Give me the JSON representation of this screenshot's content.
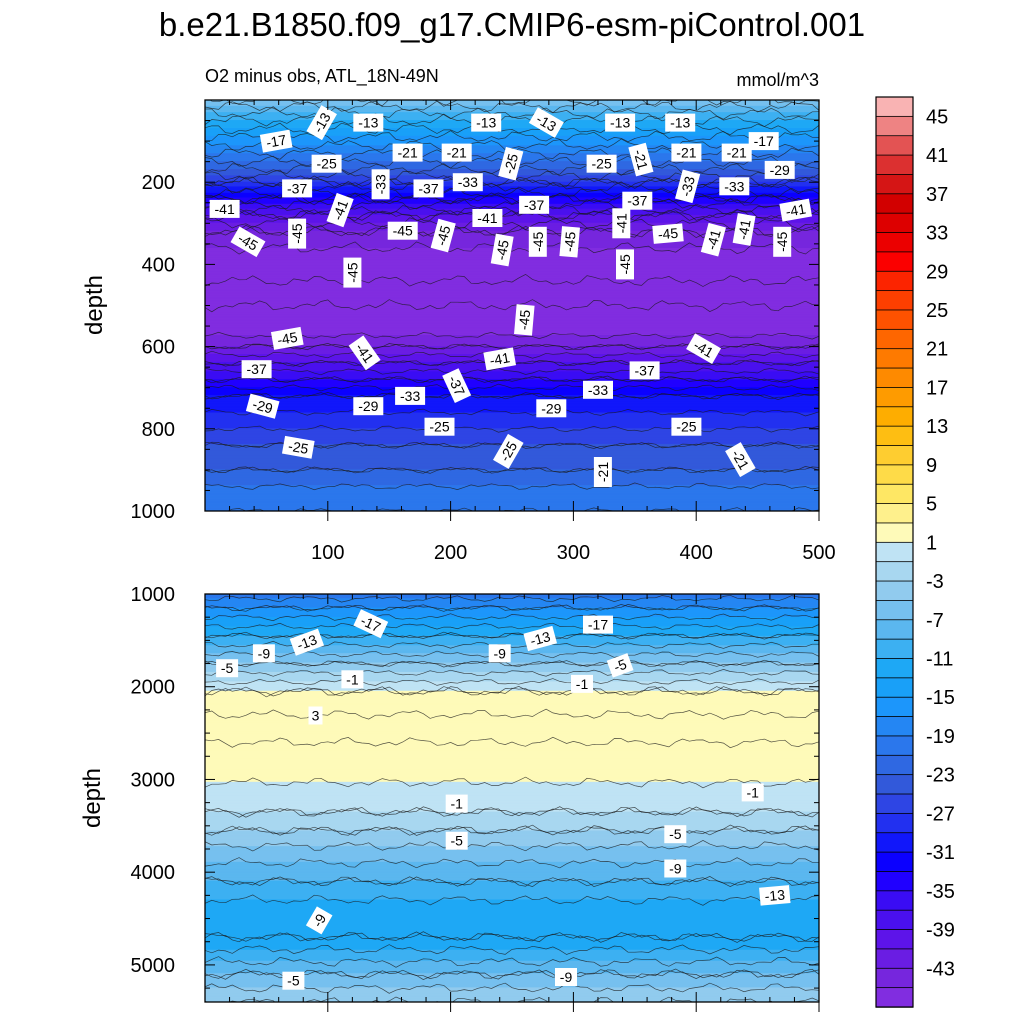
{
  "page": {
    "title": "b.e21.B1850.f09_g17.CMIP6-esm-piControl.001",
    "subtitle_left": "O2 minus obs, ATL_18N-49N",
    "subtitle_right": "mmol/m^3"
  },
  "chart_data": [
    {
      "type": "contour",
      "panel": "upper",
      "variable": "O2 minus obs",
      "region": "ATL_18N-49N",
      "units": "mmol/m^3",
      "xlabel": "",
      "ylabel": "depth",
      "xlim": [
        0,
        500
      ],
      "ylim": [
        1000,
        0
      ],
      "xticks": [
        100,
        200,
        300,
        400,
        500
      ],
      "yticks": [
        200,
        400,
        600,
        800,
        1000
      ],
      "profile": {
        "depth": [
          0,
          40,
          80,
          120,
          160,
          200,
          240,
          280,
          320,
          380,
          440,
          500,
          560,
          600,
          640,
          680,
          720,
          780,
          840,
          900,
          960,
          1000
        ],
        "value": [
          -5,
          -10,
          -14,
          -18,
          -22,
          -27,
          -33,
          -39,
          -43,
          -46,
          -47,
          -47,
          -46,
          -43,
          -39,
          -35,
          -31,
          -28,
          -25,
          -23,
          -20,
          -19
        ]
      },
      "contour_labels": [
        {
          "text": "-13",
          "x": 95,
          "y": 55,
          "rot": -60
        },
        {
          "text": "-13",
          "x": 133,
          "y": 55,
          "rot": 0
        },
        {
          "text": "-13",
          "x": 229,
          "y": 55,
          "rot": 0
        },
        {
          "text": "-13",
          "x": 278,
          "y": 55,
          "rot": 30
        },
        {
          "text": "-13",
          "x": 338,
          "y": 55,
          "rot": 0
        },
        {
          "text": "-13",
          "x": 387,
          "y": 55,
          "rot": 0
        },
        {
          "text": "-17",
          "x": 58,
          "y": 100,
          "rot": -10
        },
        {
          "text": "-17",
          "x": 455,
          "y": 100,
          "rot": 0
        },
        {
          "text": "-21",
          "x": 165,
          "y": 128,
          "rot": 0
        },
        {
          "text": "-21",
          "x": 205,
          "y": 128,
          "rot": 0
        },
        {
          "text": "-21",
          "x": 355,
          "y": 145,
          "rot": 75
        },
        {
          "text": "-21",
          "x": 392,
          "y": 128,
          "rot": 0
        },
        {
          "text": "-21",
          "x": 433,
          "y": 128,
          "rot": 0
        },
        {
          "text": "-25",
          "x": 99,
          "y": 155,
          "rot": 0
        },
        {
          "text": "-25",
          "x": 249,
          "y": 155,
          "rot": -75
        },
        {
          "text": "-25",
          "x": 323,
          "y": 155,
          "rot": 0
        },
        {
          "text": "-29",
          "x": 468,
          "y": 170,
          "rot": 0
        },
        {
          "text": "-33",
          "x": 143,
          "y": 205,
          "rot": -90
        },
        {
          "text": "-33",
          "x": 214,
          "y": 200,
          "rot": 0
        },
        {
          "text": "-33",
          "x": 393,
          "y": 210,
          "rot": -75
        },
        {
          "text": "-33",
          "x": 431,
          "y": 210,
          "rot": 0
        },
        {
          "text": "-37",
          "x": 75,
          "y": 215,
          "rot": 0
        },
        {
          "text": "-37",
          "x": 182,
          "y": 215,
          "rot": 0
        },
        {
          "text": "-37",
          "x": 268,
          "y": 255,
          "rot": 0
        },
        {
          "text": "-37",
          "x": 352,
          "y": 245,
          "rot": 0
        },
        {
          "text": "-41",
          "x": 16,
          "y": 265,
          "rot": 0
        },
        {
          "text": "-41",
          "x": 110,
          "y": 268,
          "rot": -70
        },
        {
          "text": "-41",
          "x": 230,
          "y": 287,
          "rot": 0
        },
        {
          "text": "-41",
          "x": 339,
          "y": 300,
          "rot": -90
        },
        {
          "text": "-41",
          "x": 414,
          "y": 340,
          "rot": -75
        },
        {
          "text": "-41",
          "x": 439,
          "y": 315,
          "rot": -80
        },
        {
          "text": "-41",
          "x": 481,
          "y": 268,
          "rot": -10
        },
        {
          "text": "-45",
          "x": 35,
          "y": 345,
          "rot": 30
        },
        {
          "text": "-45",
          "x": 75,
          "y": 325,
          "rot": -90
        },
        {
          "text": "-45",
          "x": 161,
          "y": 318,
          "rot": 0
        },
        {
          "text": "-45",
          "x": 194,
          "y": 330,
          "rot": -75
        },
        {
          "text": "-45",
          "x": 120,
          "y": 420,
          "rot": -90
        },
        {
          "text": "-45",
          "x": 242,
          "y": 365,
          "rot": -80
        },
        {
          "text": "-45",
          "x": 271,
          "y": 345,
          "rot": -90
        },
        {
          "text": "-45",
          "x": 297,
          "y": 345,
          "rot": -85
        },
        {
          "text": "-45",
          "x": 342,
          "y": 400,
          "rot": -90
        },
        {
          "text": "-45",
          "x": 377,
          "y": 325,
          "rot": -5
        },
        {
          "text": "-45",
          "x": 470,
          "y": 345,
          "rot": -90
        },
        {
          "text": "-45",
          "x": 67,
          "y": 580,
          "rot": -10
        },
        {
          "text": "-45",
          "x": 260,
          "y": 535,
          "rot": -85
        },
        {
          "text": "-41",
          "x": 130,
          "y": 615,
          "rot": 55
        },
        {
          "text": "-41",
          "x": 240,
          "y": 630,
          "rot": -10
        },
        {
          "text": "-41",
          "x": 406,
          "y": 605,
          "rot": 30
        },
        {
          "text": "-37",
          "x": 42,
          "y": 655,
          "rot": 0
        },
        {
          "text": "-37",
          "x": 205,
          "y": 695,
          "rot": 65
        },
        {
          "text": "-37",
          "x": 358,
          "y": 658,
          "rot": 0
        },
        {
          "text": "-33",
          "x": 167,
          "y": 720,
          "rot": 0
        },
        {
          "text": "-33",
          "x": 320,
          "y": 705,
          "rot": 0
        },
        {
          "text": "-29",
          "x": 47,
          "y": 745,
          "rot": 15
        },
        {
          "text": "-29",
          "x": 133,
          "y": 745,
          "rot": 0
        },
        {
          "text": "-29",
          "x": 282,
          "y": 750,
          "rot": 0
        },
        {
          "text": "-25",
          "x": 76,
          "y": 845,
          "rot": 10
        },
        {
          "text": "-25",
          "x": 191,
          "y": 795,
          "rot": 0
        },
        {
          "text": "-25",
          "x": 247,
          "y": 855,
          "rot": -60
        },
        {
          "text": "-25",
          "x": 392,
          "y": 795,
          "rot": 0
        },
        {
          "text": "-21",
          "x": 324,
          "y": 905,
          "rot": -90
        },
        {
          "text": "-21",
          "x": 436,
          "y": 875,
          "rot": 60
        }
      ]
    },
    {
      "type": "contour",
      "panel": "lower",
      "variable": "O2 minus obs",
      "region": "ATL_18N-49N",
      "units": "mmol/m^3",
      "xlabel": "",
      "ylabel": "depth",
      "xlim": [
        0,
        500
      ],
      "ylim": [
        5400,
        1000
      ],
      "yticks": [
        1000,
        2000,
        3000,
        4000,
        5000
      ],
      "profile": {
        "depth": [
          1000,
          1150,
          1300,
          1450,
          1600,
          1750,
          1900,
          2050,
          2300,
          2600,
          2900,
          3100,
          3350,
          3550,
          3800,
          4100,
          4400,
          4700,
          4900,
          5100,
          5400
        ],
        "value": [
          -20,
          -17,
          -14,
          -11,
          -8,
          -5,
          -2,
          1,
          3,
          3,
          2,
          0.5,
          -1,
          -3,
          -6,
          -9,
          -12,
          -13,
          -10,
          -7,
          -3
        ]
      },
      "contour_labels": [
        {
          "text": "-17",
          "x": 135,
          "y": 1320,
          "rot": 25
        },
        {
          "text": "-17",
          "x": 320,
          "y": 1330,
          "rot": 0
        },
        {
          "text": "-13",
          "x": 83,
          "y": 1520,
          "rot": -20
        },
        {
          "text": "-13",
          "x": 273,
          "y": 1480,
          "rot": -15
        },
        {
          "text": "-9",
          "x": 48,
          "y": 1640,
          "rot": 0
        },
        {
          "text": "-9",
          "x": 240,
          "y": 1640,
          "rot": 0
        },
        {
          "text": "-5",
          "x": 18,
          "y": 1800,
          "rot": 0
        },
        {
          "text": "-5",
          "x": 338,
          "y": 1770,
          "rot": -20
        },
        {
          "text": "-1",
          "x": 120,
          "y": 1920,
          "rot": 0
        },
        {
          "text": "-1",
          "x": 307,
          "y": 1970,
          "rot": 0
        },
        {
          "text": "3",
          "x": 90,
          "y": 2310,
          "rot": 0
        },
        {
          "text": "-1",
          "x": 205,
          "y": 3260,
          "rot": 0
        },
        {
          "text": "-1",
          "x": 446,
          "y": 3140,
          "rot": 0
        },
        {
          "text": "-5",
          "x": 205,
          "y": 3660,
          "rot": 0
        },
        {
          "text": "-5",
          "x": 383,
          "y": 3590,
          "rot": 0
        },
        {
          "text": "-9",
          "x": 383,
          "y": 3960,
          "rot": 0
        },
        {
          "text": "-9",
          "x": 93,
          "y": 4520,
          "rot": -60
        },
        {
          "text": "-13",
          "x": 464,
          "y": 4250,
          "rot": -5
        },
        {
          "text": "-9",
          "x": 294,
          "y": 5130,
          "rot": 0
        },
        {
          "text": "-5",
          "x": 72,
          "y": 5170,
          "rot": 0
        }
      ]
    }
  ],
  "colorbar": {
    "labels": [
      "45",
      "41",
      "37",
      "33",
      "29",
      "25",
      "21",
      "17",
      "13",
      "9",
      "5",
      "1",
      "-3",
      "-7",
      "-11",
      "-15",
      "-19",
      "-23",
      "-27",
      "-31",
      "-35",
      "-39",
      "-43"
    ],
    "levels": [
      47,
      45,
      43,
      41,
      39,
      37,
      35,
      33,
      31,
      29,
      27,
      25,
      23,
      21,
      19,
      17,
      15,
      13,
      11,
      9,
      7,
      5,
      3,
      1,
      -1,
      -3,
      -5,
      -7,
      -9,
      -11,
      -13,
      -15,
      -17,
      -19,
      -21,
      -23,
      -25,
      -27,
      -29,
      -31,
      -33,
      -35,
      -37,
      -39,
      -41,
      -43,
      -45,
      -47
    ],
    "colors": [
      "#f9b3b3",
      "#ee8383",
      "#e35353",
      "#dc3030",
      "#d51515",
      "#d20000",
      "#dd0000",
      "#eb0000",
      "#fb0000",
      "#fc2400",
      "#fd3f00",
      "#fe5200",
      "#fe6600",
      "#fe7a00",
      "#fe8a00",
      "#fe9b00",
      "#fead00",
      "#febe12",
      "#fecd30",
      "#fedb48",
      "#fee764",
      "#fef08c",
      "#fefab9",
      "#bfe3f4",
      "#a8d7f0",
      "#91cbee",
      "#76c0ef",
      "#5bb7ef",
      "#3cb0f2",
      "#1ea8f5",
      "#19a0f8",
      "#1c96fb",
      "#2486f3",
      "#2b77ec",
      "#2f68e2",
      "#3259da",
      "#2e45e4",
      "#2230f0",
      "#1117fa",
      "#0b00ff",
      "#2000ff",
      "#3a0cf4",
      "#4a10ee",
      "#5d14e9",
      "#6a1de3",
      "#7626dd",
      "#812de0"
    ]
  }
}
